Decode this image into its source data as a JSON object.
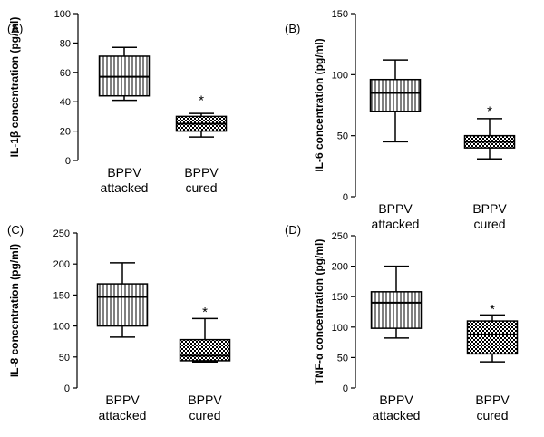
{
  "chart_data": [
    {
      "type": "boxplot",
      "panel_label": "(A)",
      "ylabel": "IL-1β concentration (pg/ml)",
      "ylim": [
        0,
        100
      ],
      "yticks": [
        0,
        20,
        40,
        60,
        80,
        100
      ],
      "categories": [
        [
          "BPPV",
          "attacked"
        ],
        [
          "BPPV",
          "cured"
        ]
      ],
      "boxes": [
        {
          "name": "BPPV attacked",
          "pattern": "vertical",
          "min": 41,
          "q1": 44,
          "median": 57,
          "q3": 71,
          "max": 77
        },
        {
          "name": "BPPV cured",
          "pattern": "checker",
          "min": 16,
          "q1": 20,
          "median": 25,
          "q3": 30,
          "max": 32
        }
      ],
      "annotations": [
        {
          "category": 1,
          "text": "*",
          "y": 44
        }
      ]
    },
    {
      "type": "boxplot",
      "panel_label": "(B)",
      "ylabel": "IL-6 concentration (pg/ml)",
      "ylim": [
        0,
        150
      ],
      "yticks": [
        0,
        50,
        100,
        150
      ],
      "categories": [
        [
          "BPPV",
          "attacked"
        ],
        [
          "BPPV",
          "cured"
        ]
      ],
      "boxes": [
        {
          "name": "BPPV attacked",
          "pattern": "vertical",
          "min": 45,
          "q1": 70,
          "median": 85,
          "q3": 96,
          "max": 112
        },
        {
          "name": "BPPV cured",
          "pattern": "checker",
          "min": 31,
          "q1": 40,
          "median": 45,
          "q3": 50,
          "max": 64
        }
      ],
      "annotations": [
        {
          "category": 1,
          "text": "*",
          "y": 74
        }
      ]
    },
    {
      "type": "boxplot",
      "panel_label": "(C)",
      "ylabel": "IL-8 concentration (pg/ml)",
      "ylim": [
        0,
        250
      ],
      "yticks": [
        0,
        50,
        100,
        150,
        200,
        250
      ],
      "categories": [
        [
          "BPPV",
          "attacked"
        ],
        [
          "BPPV",
          "cured"
        ]
      ],
      "boxes": [
        {
          "name": "BPPV attacked",
          "pattern": "vertical",
          "min": 82,
          "q1": 100,
          "median": 147,
          "q3": 168,
          "max": 202
        },
        {
          "name": "BPPV cured",
          "pattern": "checker",
          "min": 42,
          "q1": 44,
          "median": 52,
          "q3": 78,
          "max": 112
        }
      ],
      "annotations": [
        {
          "category": 1,
          "text": "*",
          "y": 130
        }
      ]
    },
    {
      "type": "boxplot",
      "panel_label": "(D)",
      "ylabel": "TNF-α concentration (pg/ml)",
      "ylim": [
        0,
        250
      ],
      "yticks": [
        0,
        50,
        100,
        150,
        200,
        250
      ],
      "categories": [
        [
          "BPPV",
          "attacked"
        ],
        [
          "BPPV",
          "cured"
        ]
      ],
      "boxes": [
        {
          "name": "BPPV attacked",
          "pattern": "vertical",
          "min": 82,
          "q1": 98,
          "median": 140,
          "q3": 158,
          "max": 200
        },
        {
          "name": "BPPV cured",
          "pattern": "checker",
          "min": 43,
          "q1": 56,
          "median": 88,
          "q3": 110,
          "max": 120
        }
      ],
      "annotations": [
        {
          "category": 1,
          "text": "*",
          "y": 137
        }
      ]
    }
  ]
}
